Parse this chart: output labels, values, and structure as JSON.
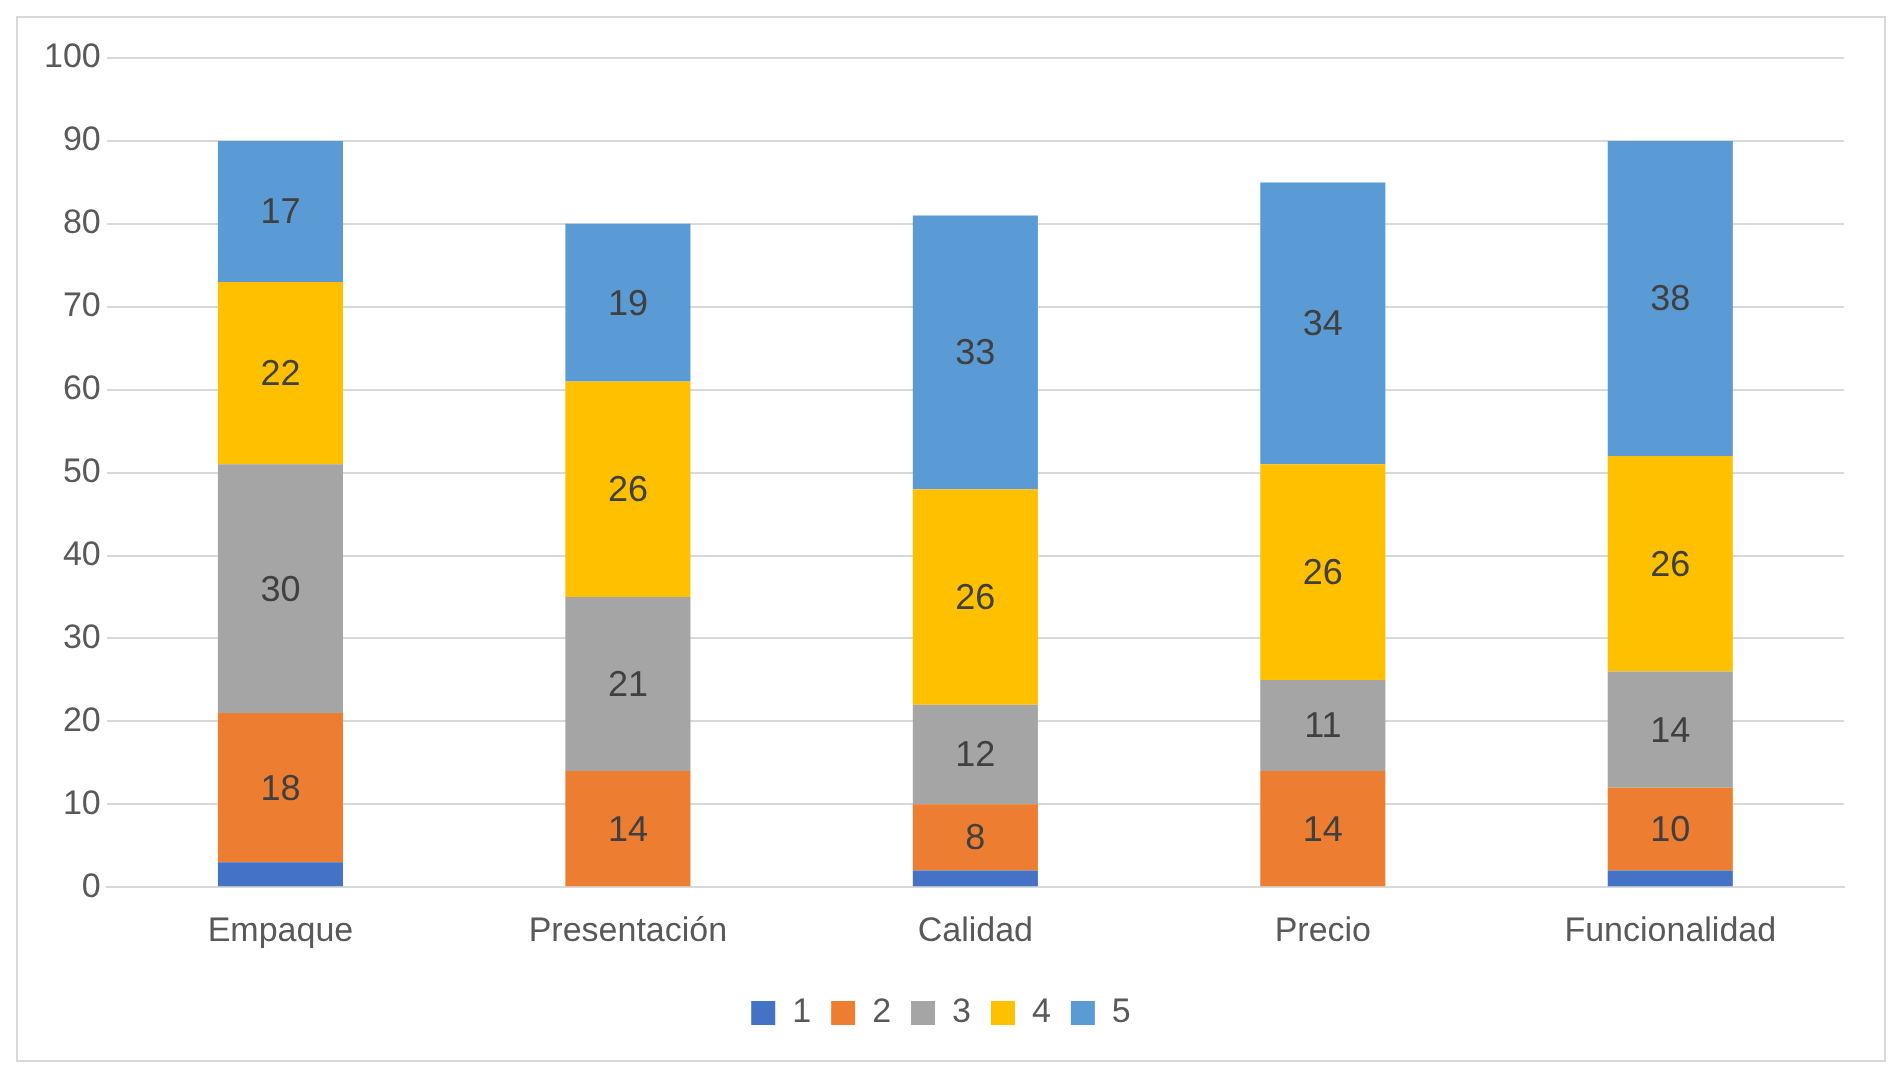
{
  "chart_data": {
    "type": "bar",
    "stacked": true,
    "categories": [
      "Empaque",
      "Presentación",
      "Calidad",
      "Precio",
      "Funcionalidad"
    ],
    "series": [
      {
        "name": "1",
        "color": "#4472c4",
        "values": [
          3,
          0,
          2,
          0,
          2
        ],
        "value_labels": [
          null,
          null,
          null,
          null,
          null
        ]
      },
      {
        "name": "2",
        "color": "#ed7d31",
        "values": [
          18,
          14,
          8,
          14,
          10
        ],
        "value_labels": [
          "18",
          "14",
          "8",
          "14",
          "10"
        ]
      },
      {
        "name": "3",
        "color": "#a5a5a5",
        "values": [
          30,
          21,
          12,
          11,
          14
        ],
        "value_labels": [
          "30",
          "21",
          "12",
          "11",
          "14"
        ]
      },
      {
        "name": "4",
        "color": "#ffc000",
        "values": [
          22,
          26,
          26,
          26,
          26
        ],
        "value_labels": [
          "22",
          "26",
          "26",
          "26",
          "26"
        ]
      },
      {
        "name": "5",
        "color": "#5b9bd5",
        "values": [
          17,
          19,
          33,
          34,
          38
        ],
        "value_labels": [
          "17",
          "19",
          "33",
          "34",
          "38"
        ]
      }
    ],
    "ylim": [
      0,
      100
    ],
    "yticks": [
      0,
      10,
      20,
      30,
      40,
      50,
      60,
      70,
      80,
      90,
      100
    ],
    "grid": "y",
    "legend": "bottom"
  }
}
